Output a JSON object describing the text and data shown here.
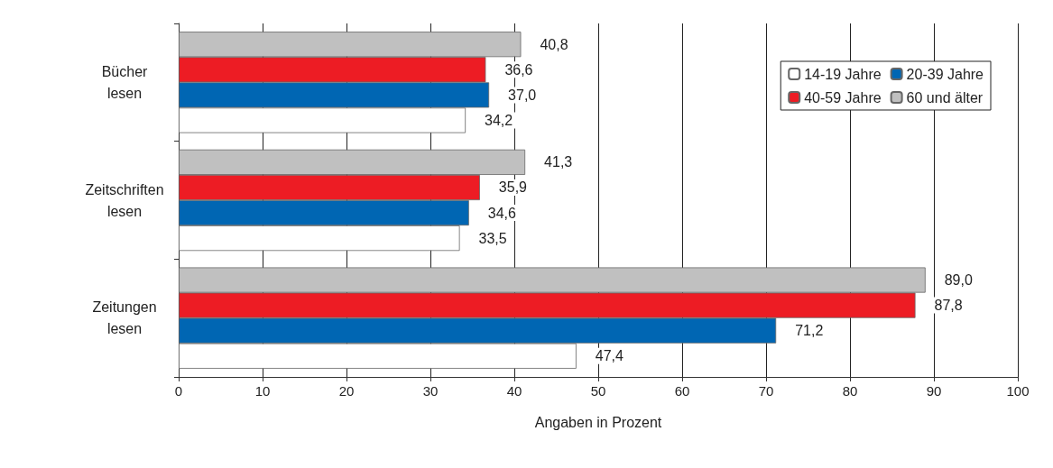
{
  "chart_data": {
    "type": "bar",
    "orientation": "horizontal",
    "categories": [
      "Bücher\nlesen",
      "Zeitschriften\nlesen",
      "Zeitungen\nlesen"
    ],
    "series": [
      {
        "name": "14-19 Jahre",
        "color": "#ffffff",
        "values": [
          34.2,
          33.5,
          47.4
        ],
        "value_labels": [
          "34,2",
          "33,5",
          "47,4"
        ]
      },
      {
        "name": "20-39 Jahre",
        "color": "#0066b3",
        "values": [
          37.0,
          34.6,
          71.2
        ],
        "value_labels": [
          "37,0",
          "34,6",
          "71,2"
        ]
      },
      {
        "name": "40-59 Jahre",
        "color": "#ed1c24",
        "values": [
          36.6,
          35.9,
          87.8
        ],
        "value_labels": [
          "36,6",
          "35,9",
          "87,8"
        ]
      },
      {
        "name": "60 und älter",
        "color": "#c0c0c0",
        "values": [
          40.8,
          41.3,
          89.0
        ],
        "value_labels": [
          "40,8",
          "41,3",
          "89,0"
        ]
      }
    ],
    "xlim": [
      0,
      100
    ],
    "xticks": [
      0,
      10,
      20,
      30,
      40,
      50,
      60,
      70,
      80,
      90,
      100
    ],
    "xlabel": "Angaben in Prozent",
    "grid": "x",
    "legend": "top right"
  }
}
